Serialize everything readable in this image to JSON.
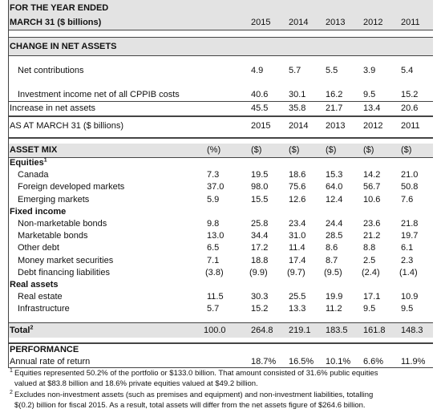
{
  "top": {
    "header": [
      "FOR THE YEAR ENDED",
      "MARCH 31 ($ billions)"
    ],
    "years": [
      "2015",
      "2014",
      "2013",
      "2012",
      "2011"
    ],
    "section": "CHANGE IN NET ASSETS",
    "rows": [
      {
        "label": "Net contributions",
        "values": [
          "4.9",
          "5.7",
          "5.5",
          "3.9",
          "5.4"
        ]
      },
      {
        "label": "Investment income net of all CPPIB costs",
        "values": [
          "40.6",
          "30.1",
          "16.2",
          "9.5",
          "15.2"
        ]
      }
    ],
    "total": {
      "label": "Increase in net assets",
      "values": [
        "45.5",
        "35.8",
        "21.7",
        "13.4",
        "20.6"
      ]
    }
  },
  "bottom": {
    "header": "AS AT MARCH 31 ($ billions)",
    "years": [
      "2015",
      "2014",
      "2013",
      "2012",
      "2011"
    ],
    "section": "ASSET MIX",
    "units": [
      "(%)",
      "($)",
      "($)",
      "($)",
      "($)",
      "($)"
    ],
    "groups": [
      {
        "title": "Equities",
        "note": "1",
        "rows": [
          {
            "label": "Canada",
            "values": [
              "7.3",
              "19.5",
              "18.6",
              "15.3",
              "14.2",
              "21.0"
            ]
          },
          {
            "label": "Foreign developed markets",
            "values": [
              "37.0",
              "98.0",
              "75.6",
              "64.0",
              "56.7",
              "50.8"
            ]
          },
          {
            "label": "Emerging markets",
            "values": [
              "5.9",
              "15.5",
              "12.6",
              "12.4",
              "10.6",
              "7.6"
            ]
          }
        ]
      },
      {
        "title": "Fixed income",
        "rows": [
          {
            "label": "Non-marketable bonds",
            "values": [
              "9.8",
              "25.8",
              "23.4",
              "24.4",
              "23.6",
              "21.8"
            ]
          },
          {
            "label": "Marketable bonds",
            "values": [
              "13.0",
              "34.4",
              "31.0",
              "28.5",
              "21.2",
              "19.7"
            ]
          },
          {
            "label": "Other debt",
            "values": [
              "6.5",
              "17.2",
              "11.4",
              "8.6",
              "8.8",
              "6.1"
            ]
          },
          {
            "label": "Money market securities",
            "values": [
              "7.1",
              "18.8",
              "17.4",
              "8.7",
              "2.5",
              "2.3"
            ]
          },
          {
            "label": "Debt financing liabilities",
            "values": [
              "(3.8)",
              "(9.9)",
              "(9.7)",
              "(9.5)",
              "(2.4)",
              "(1.4)"
            ]
          }
        ]
      },
      {
        "title": "Real assets",
        "rows": [
          {
            "label": "Real estate",
            "values": [
              "11.5",
              "30.3",
              "25.5",
              "19.9",
              "17.1",
              "10.9"
            ]
          },
          {
            "label": "Infrastructure",
            "values": [
              "5.7",
              "15.2",
              "13.3",
              "11.2",
              "9.5",
              "9.5"
            ]
          }
        ]
      }
    ],
    "total": {
      "label": "Total",
      "note": "2",
      "values": [
        "100.0",
        "264.8",
        "219.1",
        "183.5",
        "161.8",
        "148.3"
      ]
    },
    "performance": {
      "title": "PERFORMANCE",
      "label": "Annual rate of return",
      "values": [
        "18.7%",
        "16.5%",
        "10.1%",
        "6.6%",
        "11.9%"
      ]
    }
  },
  "footnotes": [
    {
      "mark": "1",
      "lines": [
        "Equities represented 50.2% of the portfolio or $133.0 billion. That amount consisted of 31.6% public equities",
        "valued at $83.8 billion and 18.6% private equities valued at $49.2 billion."
      ]
    },
    {
      "mark": "2",
      "lines": [
        "Excludes non-investment assets (such as premises and equipment) and non-investment liabilities, totalling",
        "$(0.2) billion for fiscal 2015. As a result, total assets will differ from the net assets figure of $264.6 billion."
      ]
    }
  ]
}
